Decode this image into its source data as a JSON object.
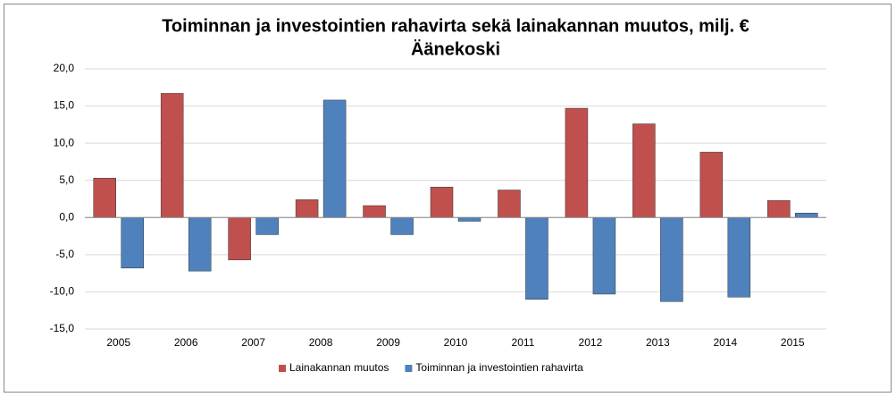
{
  "chart_data": {
    "type": "bar",
    "title": "Toiminnan ja investointien rahavirta sekä lainakannan muutos, milj. €",
    "subtitle": "Äänekoski",
    "categories": [
      "2005",
      "2006",
      "2007",
      "2008",
      "2009",
      "2010",
      "2011",
      "2012",
      "2013",
      "2014",
      "2015"
    ],
    "series": [
      {
        "name": "Lainakannan muutos",
        "color": "#c0504d",
        "values": [
          5.3,
          16.7,
          -5.7,
          2.4,
          1.6,
          4.1,
          3.7,
          14.7,
          12.6,
          8.8,
          2.3
        ]
      },
      {
        "name": "Toiminnan ja investointien rahavirta",
        "color": "#4f81bd",
        "values": [
          -6.8,
          -7.2,
          -2.3,
          15.8,
          -2.3,
          -0.5,
          -11.0,
          -10.3,
          -11.3,
          -10.7,
          0.6
        ]
      }
    ],
    "ylim": [
      -15,
      20
    ],
    "yticks": [
      {
        "value": -15,
        "label": "-15,0"
      },
      {
        "value": -10,
        "label": "-10,0"
      },
      {
        "value": -5,
        "label": "-5,0"
      },
      {
        "value": 0,
        "label": "0,0"
      },
      {
        "value": 5,
        "label": "5,0"
      },
      {
        "value": 10,
        "label": "10,0"
      },
      {
        "value": 15,
        "label": "15,0"
      },
      {
        "value": 20,
        "label": "20,0"
      }
    ],
    "grid": true,
    "legend": "bottom"
  }
}
